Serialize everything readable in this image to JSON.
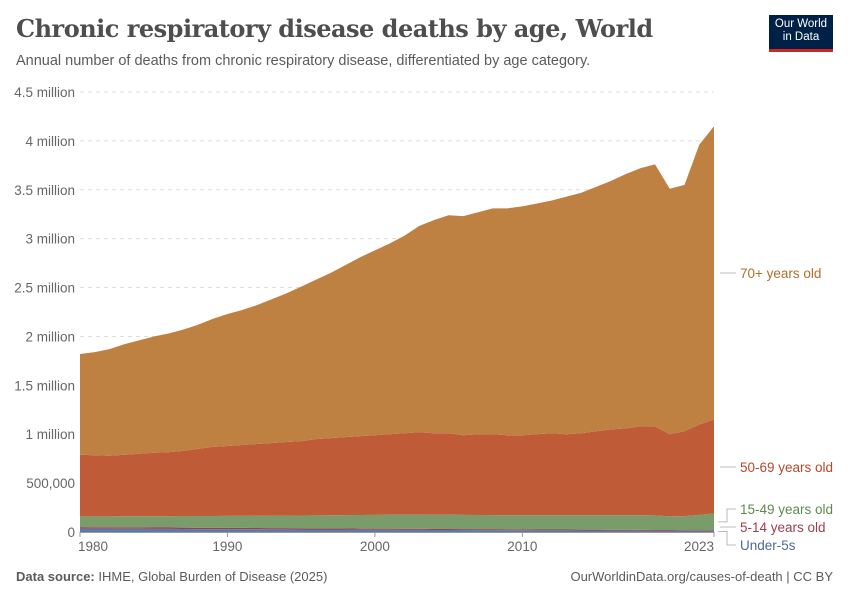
{
  "header": {
    "title": "Chronic respiratory disease deaths by age, World",
    "subtitle": "Annual number of deaths from chronic respiratory disease, differentiated by age category.",
    "logo_line1": "Our World",
    "logo_line2": "in Data"
  },
  "footer": {
    "source_label": "Data source:",
    "source": "IHME, Global Burden of Disease (2025)",
    "credit": "OurWorldinData.org/causes-of-death | CC BY"
  },
  "chart_data": {
    "type": "area",
    "stacked": true,
    "title": "Chronic respiratory disease deaths by age, World",
    "xlabel": "",
    "ylabel": "",
    "xlim": [
      1980,
      2023
    ],
    "ylim": [
      0,
      4500000
    ],
    "grid": true,
    "legend": "right (inline labels)",
    "x_tick_labels": [
      "1980",
      "1990",
      "2000",
      "2010",
      "2023"
    ],
    "x_ticks": [
      1980,
      1990,
      2000,
      2010,
      2023
    ],
    "y_ticks": [
      0,
      500000,
      1000000,
      1500000,
      2000000,
      2500000,
      3000000,
      3500000,
      4000000,
      4500000
    ],
    "y_tick_labels": [
      "0",
      "500,000",
      "1 million",
      "1.5 million",
      "2 million",
      "2.5 million",
      "3 million",
      "3.5 million",
      "4 million",
      "4.5 million"
    ],
    "x": [
      1980,
      1981,
      1982,
      1983,
      1984,
      1985,
      1986,
      1987,
      1988,
      1989,
      1990,
      1991,
      1992,
      1993,
      1994,
      1995,
      1996,
      1997,
      1998,
      1999,
      2000,
      2001,
      2002,
      2003,
      2004,
      2005,
      2006,
      2007,
      2008,
      2009,
      2010,
      2011,
      2012,
      2013,
      2014,
      2015,
      2016,
      2017,
      2018,
      2019,
      2020,
      2021,
      2022,
      2023
    ],
    "series": [
      {
        "name": "Under-5s",
        "color": "#5b7ba6",
        "label_color": "#4c6a9c",
        "values": [
          35000,
          34000,
          34000,
          33000,
          33000,
          32000,
          32000,
          31000,
          30000,
          30000,
          29000,
          29000,
          28000,
          27000,
          27000,
          26000,
          26000,
          25000,
          25000,
          24000,
          23000,
          23000,
          22000,
          22000,
          21000,
          21000,
          20000,
          19000,
          19000,
          18000,
          18000,
          17000,
          16000,
          16000,
          15000,
          15000,
          14000,
          14000,
          13000,
          12000,
          12000,
          11000,
          11000,
          10000
        ]
      },
      {
        "name": "5-14 years old",
        "color": "#9c3f4e",
        "label_color": "#9c3f4e",
        "values": [
          15000,
          15000,
          15000,
          15000,
          14000,
          14000,
          14000,
          14000,
          13000,
          13000,
          13000,
          13000,
          13000,
          12000,
          12000,
          12000,
          12000,
          12000,
          12000,
          11000,
          11000,
          11000,
          11000,
          11000,
          10000,
          10000,
          10000,
          10000,
          10000,
          10000,
          10000,
          9000,
          9000,
          9000,
          9000,
          9000,
          9000,
          9000,
          9000,
          8000,
          8000,
          8000,
          8000,
          8000
        ]
      },
      {
        "name": "15-49 years old",
        "color": "#7a9b6a",
        "label_color": "#5f8a4c",
        "values": [
          110000,
          111000,
          111000,
          113000,
          115000,
          116000,
          116000,
          118000,
          121000,
          121000,
          123000,
          123000,
          125000,
          128000,
          129000,
          131000,
          132000,
          134000,
          135000,
          139000,
          141000,
          142000,
          144000,
          145000,
          147000,
          147000,
          145000,
          145000,
          144000,
          145000,
          144000,
          146000,
          147000,
          147000,
          148000,
          148000,
          149000,
          149000,
          149000,
          150000,
          140000,
          143000,
          156000,
          172000
        ]
      },
      {
        "name": "50-69 years old",
        "color": "#c05b38",
        "label_color": "#b8482a",
        "values": [
          630000,
          625000,
          620000,
          629000,
          638000,
          648000,
          653000,
          667000,
          686000,
          706000,
          715000,
          725000,
          734000,
          743000,
          752000,
          761000,
          780000,
          789000,
          798000,
          806000,
          815000,
          824000,
          833000,
          842000,
          832000,
          832000,
          815000,
          826000,
          827000,
          817000,
          818000,
          828000,
          838000,
          828000,
          838000,
          858000,
          878000,
          888000,
          909000,
          910000,
          840000,
          868000,
          925000,
          960000
        ]
      },
      {
        "name": "70+ years old",
        "color": "#be8141",
        "label_color": "#b06f2a",
        "values": [
          1030000,
          1055000,
          1090000,
          1130000,
          1160000,
          1190000,
          1215000,
          1240000,
          1270000,
          1310000,
          1350000,
          1380000,
          1420000,
          1470000,
          1520000,
          1580000,
          1630000,
          1690000,
          1760000,
          1830000,
          1890000,
          1950000,
          2020000,
          2110000,
          2180000,
          2230000,
          2240000,
          2270000,
          2310000,
          2320000,
          2340000,
          2360000,
          2380000,
          2430000,
          2460000,
          2500000,
          2540000,
          2600000,
          2640000,
          2680000,
          2510000,
          2520000,
          2860000,
          3000000
        ]
      }
    ]
  }
}
